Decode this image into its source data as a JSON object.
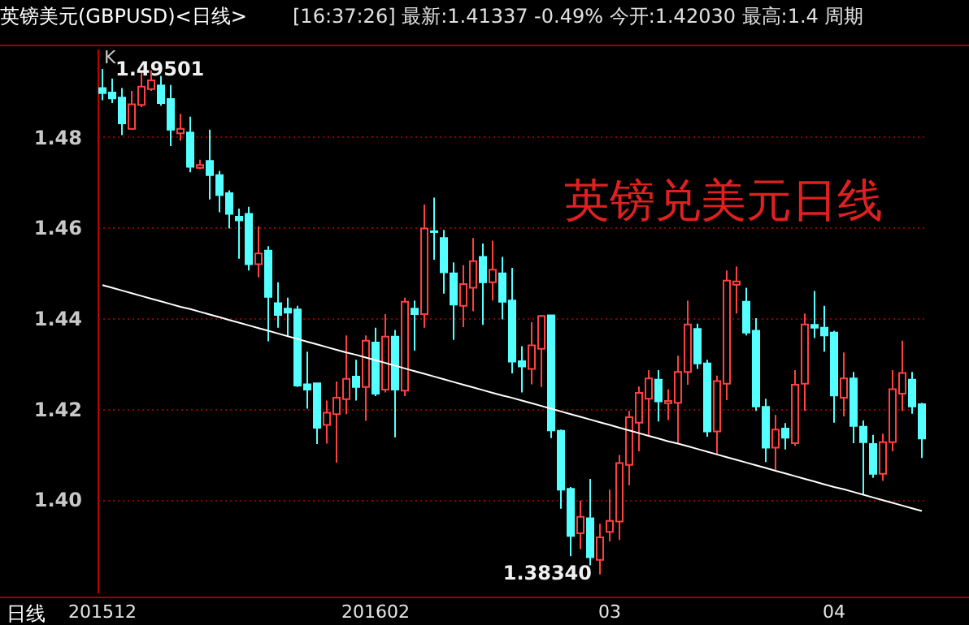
{
  "chart_data": {
    "type": "candlestick",
    "title": "英镑兑美元日线",
    "subtitle": "英镑美元(GBPUSD)<日线>",
    "xlabel": "日线",
    "annotations": [
      "[16:37:26] 最新:1.41337 -0.49% 今开:1.42030 最高:1.4 周期",
      "K",
      {
        "text": "1.49501",
        "y": 1.49501
      },
      "1.38340"
    ],
    "categories": [
      "201512",
      null,
      null,
      null,
      null,
      null,
      null,
      null,
      null,
      null,
      null,
      null,
      null,
      null,
      null,
      null,
      null,
      null,
      null,
      null,
      null,
      null,
      null,
      null,
      null,
      null,
      null,
      null,
      "201602",
      null,
      null,
      null,
      null,
      null,
      null,
      null,
      null,
      null,
      null,
      null,
      null,
      null,
      null,
      null,
      null,
      null,
      null,
      null,
      null,
      null,
      null,
      null,
      "03",
      null,
      null,
      null,
      null,
      null,
      null,
      null,
      null,
      null,
      null,
      null,
      null,
      null,
      null,
      null,
      null,
      null,
      null,
      null,
      null,
      null,
      null,
      "04",
      null,
      null,
      null,
      null,
      null,
      null,
      null,
      null,
      null
    ],
    "ohlc": [
      [
        1.4908,
        1.49501,
        1.4881,
        1.4897
      ],
      [
        1.4898,
        1.4929,
        1.4875,
        1.4885
      ],
      [
        1.4887,
        1.4908,
        1.4804,
        1.483
      ],
      [
        1.4818,
        1.4902,
        1.4816,
        1.4872
      ],
      [
        1.4871,
        1.4941,
        1.4866,
        1.4911
      ],
      [
        1.4906,
        1.4947,
        1.4902,
        1.4925
      ],
      [
        1.4914,
        1.4935,
        1.4869,
        1.4875
      ],
      [
        1.4884,
        1.4915,
        1.478,
        1.4816
      ],
      [
        1.4808,
        1.4851,
        1.4792,
        1.4818
      ],
      [
        1.481,
        1.4845,
        1.4722,
        1.4734
      ],
      [
        1.4732,
        1.475,
        1.4729,
        1.4738
      ],
      [
        1.4747,
        1.4816,
        1.4662,
        1.4716
      ],
      [
        1.4716,
        1.4725,
        1.4634,
        1.4672
      ],
      [
        1.4676,
        1.4682,
        1.4598,
        1.463
      ],
      [
        1.4624,
        1.4642,
        1.4531,
        1.4616
      ],
      [
        1.463,
        1.4646,
        1.4505,
        1.4519
      ],
      [
        1.4519,
        1.4603,
        1.449,
        1.4543
      ],
      [
        1.4549,
        1.4559,
        1.4349,
        1.4447
      ],
      [
        1.4433,
        1.4479,
        1.4379,
        1.4407
      ],
      [
        1.4421,
        1.4445,
        1.4361,
        1.4412
      ],
      [
        1.4419,
        1.4427,
        1.4248,
        1.4251
      ],
      [
        1.4254,
        1.4326,
        1.42,
        1.4242
      ],
      [
        1.4256,
        1.4256,
        1.4122,
        1.4158
      ],
      [
        1.4164,
        1.4218,
        1.4123,
        1.4191
      ],
      [
        1.4188,
        1.426,
        1.4081,
        1.4224
      ],
      [
        1.4221,
        1.4362,
        1.4188,
        1.4266
      ],
      [
        1.4271,
        1.4308,
        1.4218,
        1.4248
      ],
      [
        1.4248,
        1.4362,
        1.4173,
        1.435
      ],
      [
        1.4346,
        1.4379,
        1.4228,
        1.4233
      ],
      [
        1.4242,
        1.4409,
        1.4236,
        1.4359
      ],
      [
        1.4359,
        1.4374,
        1.4137,
        1.4242
      ],
      [
        1.424,
        1.4445,
        1.4228,
        1.4436
      ],
      [
        1.4421,
        1.4439,
        1.4328,
        1.4409
      ],
      [
        1.4409,
        1.4651,
        1.4379,
        1.4598
      ],
      [
        1.4592,
        1.4666,
        1.4529,
        1.459
      ],
      [
        1.4577,
        1.4595,
        1.4454,
        1.4501
      ],
      [
        1.4499,
        1.4523,
        1.4352,
        1.443
      ],
      [
        1.4427,
        1.4517,
        1.438,
        1.4475
      ],
      [
        1.4467,
        1.4577,
        1.4415,
        1.4526
      ],
      [
        1.4535,
        1.4565,
        1.4385,
        1.4479
      ],
      [
        1.4479,
        1.4571,
        1.4439,
        1.4507
      ],
      [
        1.4499,
        1.4535,
        1.4397,
        1.4436
      ],
      [
        1.4439,
        1.4511,
        1.4278,
        1.4304
      ],
      [
        1.4305,
        1.4338,
        1.4236,
        1.4293
      ],
      [
        1.4288,
        1.4391,
        1.4254,
        1.434
      ],
      [
        1.4332,
        1.4407,
        1.4248,
        1.4405
      ],
      [
        1.4406,
        1.4406,
        1.4135,
        1.4152
      ],
      [
        1.4151,
        1.4154,
        1.3979,
        1.4021
      ],
      [
        1.4023,
        1.4027,
        1.3874,
        1.3919
      ],
      [
        1.3925,
        1.3997,
        1.389,
        1.3961
      ],
      [
        1.3958,
        1.4045,
        1.3854,
        1.3872
      ],
      [
        1.3866,
        1.3946,
        1.3834,
        1.3916
      ],
      [
        1.3928,
        1.4021,
        1.3907,
        1.3952
      ],
      [
        1.3951,
        1.4098,
        1.391,
        1.408
      ],
      [
        1.4076,
        1.4195,
        1.4031,
        1.4181
      ],
      [
        1.4169,
        1.4249,
        1.4106,
        1.4235
      ],
      [
        1.4222,
        1.4285,
        1.4138,
        1.4267
      ],
      [
        1.4264,
        1.4285,
        1.4172,
        1.4216
      ],
      [
        1.4212,
        1.4243,
        1.4175,
        1.4217
      ],
      [
        1.4213,
        1.4317,
        1.4124,
        1.4281
      ],
      [
        1.4281,
        1.4439,
        1.4253,
        1.4386
      ],
      [
        1.4376,
        1.4388,
        1.4288,
        1.43
      ],
      [
        1.43,
        1.4308,
        1.4138,
        1.415
      ],
      [
        1.415,
        1.4273,
        1.41,
        1.4261
      ],
      [
        1.4255,
        1.4505,
        1.4219,
        1.4483
      ],
      [
        1.4474,
        1.4514,
        1.441,
        1.4481
      ],
      [
        1.4436,
        1.4467,
        1.4362,
        1.4368
      ],
      [
        1.4372,
        1.44,
        1.4195,
        1.4205
      ],
      [
        1.4204,
        1.4222,
        1.4082,
        1.4114
      ],
      [
        1.4114,
        1.4186,
        1.4065,
        1.4154
      ],
      [
        1.4156,
        1.4168,
        1.411,
        1.4136
      ],
      [
        1.4124,
        1.4285,
        1.4118,
        1.4253
      ],
      [
        1.4255,
        1.441,
        1.4195,
        1.4386
      ],
      [
        1.4385,
        1.446,
        1.4356,
        1.4379
      ],
      [
        1.4379,
        1.4427,
        1.4326,
        1.4362
      ],
      [
        1.4368,
        1.4372,
        1.4169,
        1.4229
      ],
      [
        1.4224,
        1.4324,
        1.4183,
        1.4267
      ],
      [
        1.4267,
        1.4281,
        1.4124,
        1.4162
      ],
      [
        1.416,
        1.4174,
        1.4009,
        1.4126
      ],
      [
        1.4122,
        1.4142,
        1.4047,
        1.4056
      ],
      [
        1.4056,
        1.4145,
        1.4041,
        1.4126
      ],
      [
        1.4126,
        1.4285,
        1.4106,
        1.4243
      ],
      [
        1.4233,
        1.435,
        1.4195,
        1.4279
      ],
      [
        1.4264,
        1.4281,
        1.4189,
        1.4205
      ],
      [
        1.421,
        1.4213,
        1.4091,
        1.4134
      ]
    ],
    "colors": [
      "#54ffff",
      "#54ffff",
      "#54ffff",
      "#ff4040",
      "#ff4040",
      "#ff4040",
      "#54ffff",
      "#54ffff",
      "#ff4040",
      "#54ffff",
      "#ff4040",
      "#54ffff",
      "#54ffff",
      "#54ffff",
      "#54ffff",
      "#54ffff",
      "#ff4040",
      "#54ffff",
      "#54ffff",
      "#54ffff",
      "#54ffff",
      "#54ffff",
      "#54ffff",
      "#ff4040",
      "#ff4040",
      "#ff4040",
      "#54ffff",
      "#ff4040",
      "#54ffff",
      "#ff4040",
      "#54ffff",
      "#ff4040",
      "#54ffff",
      "#ff4040",
      "#54ffff",
      "#54ffff",
      "#54ffff",
      "#ff4040",
      "#ff4040",
      "#54ffff",
      "#ff4040",
      "#54ffff",
      "#54ffff",
      "#54ffff",
      "#ff4040",
      "#ff4040",
      "#54ffff",
      "#54ffff",
      "#54ffff",
      "#ff4040",
      "#54ffff",
      "#ff4040",
      "#ff4040",
      "#ff4040",
      "#ff4040",
      "#ff4040",
      "#ff4040",
      "#54ffff",
      "#ff4040",
      "#ff4040",
      "#ff4040",
      "#54ffff",
      "#54ffff",
      "#ff4040",
      "#ff4040",
      "#ff4040",
      "#54ffff",
      "#54ffff",
      "#54ffff",
      "#ff4040",
      "#54ffff",
      "#ff4040",
      "#ff4040",
      "#54ffff",
      "#54ffff",
      "#54ffff",
      "#ff4040",
      "#54ffff",
      "#54ffff",
      "#54ffff",
      "#ff4040",
      "#ff4040",
      "#ff4040",
      "#54ffff",
      "#54ffff"
    ],
    "series": [
      {
        "type": "line",
        "color": "#ffffff",
        "values": [
          1.4473,
          1.4467,
          1.4461,
          1.4455,
          1.4449,
          1.4443,
          1.4437,
          1.4431,
          1.4425,
          1.442,
          1.4414,
          1.4408,
          1.4402,
          1.4396,
          1.439,
          1.4384,
          1.4378,
          1.4372,
          1.4366,
          1.436,
          1.4354,
          1.4348,
          1.4342,
          1.4336,
          1.433,
          1.4324,
          1.4319,
          1.4313,
          1.4307,
          1.4301,
          1.4295,
          1.4289,
          1.4283,
          1.4277,
          1.4271,
          1.4265,
          1.4259,
          1.4253,
          1.4247,
          1.4241,
          1.4235,
          1.4229,
          1.4224,
          1.4218,
          1.4212,
          1.4206,
          1.42,
          1.4194,
          1.4188,
          1.4182,
          1.4176,
          1.417,
          1.4164,
          1.4158,
          1.4152,
          1.4146,
          1.414,
          1.4134,
          1.4128,
          1.4123,
          1.4117,
          1.4111,
          1.4105,
          1.4099,
          1.4093,
          1.4087,
          1.4081,
          1.4075,
          1.4069,
          1.4063,
          1.4057,
          1.4051,
          1.4045,
          1.4039,
          1.4033,
          1.4027,
          1.4022,
          1.4016,
          1.401,
          1.4004,
          1.3998,
          1.3992,
          1.3986,
          1.398,
          1.3974
        ]
      }
    ],
    "ylim": [
      1.3794,
      1.4995
    ],
    "yticks": [
      {
        "value": 1.4,
        "label": "1.40"
      },
      {
        "value": 1.42,
        "label": "1.42"
      },
      {
        "value": 1.44,
        "label": "1.44"
      },
      {
        "value": 1.46,
        "label": "1.46"
      },
      {
        "value": 1.48,
        "label": "1.48"
      }
    ],
    "grid": "y"
  }
}
